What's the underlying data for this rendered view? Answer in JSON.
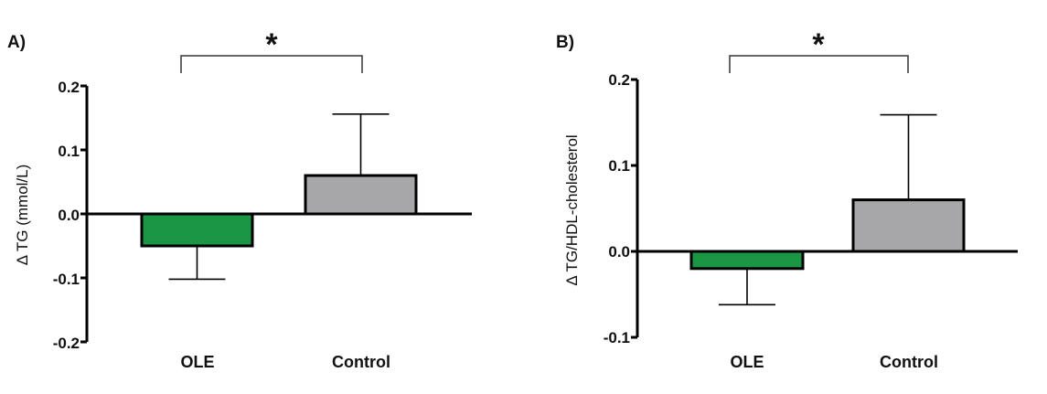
{
  "chart_data": [
    {
      "type": "bar",
      "panel_label": "A)",
      "categories": [
        "OLE",
        "Control"
      ],
      "values": [
        -0.05,
        0.06
      ],
      "errors": [
        0.052,
        0.096
      ],
      "ylabel": "Δ TG (mmol/L)",
      "ylim": [
        -0.2,
        0.2
      ],
      "yticks": [
        "0.2",
        "0.1",
        "0.0",
        "-0.1",
        "-0.2"
      ],
      "significance": "*",
      "colors": [
        "#1a9645",
        "#a7a7a9"
      ]
    },
    {
      "type": "bar",
      "panel_label": "B)",
      "categories": [
        "OLE",
        "Control"
      ],
      "values": [
        -0.02,
        0.06
      ],
      "errors": [
        0.042,
        0.099
      ],
      "ylabel": "Δ TG/HDL-cholesterol",
      "ylim": [
        -0.1,
        0.2
      ],
      "yticks": [
        "0.2",
        "0.1",
        "0.0",
        "-0.1"
      ],
      "significance": "*",
      "colors": [
        "#1a9645",
        "#a7a7a9"
      ]
    }
  ]
}
